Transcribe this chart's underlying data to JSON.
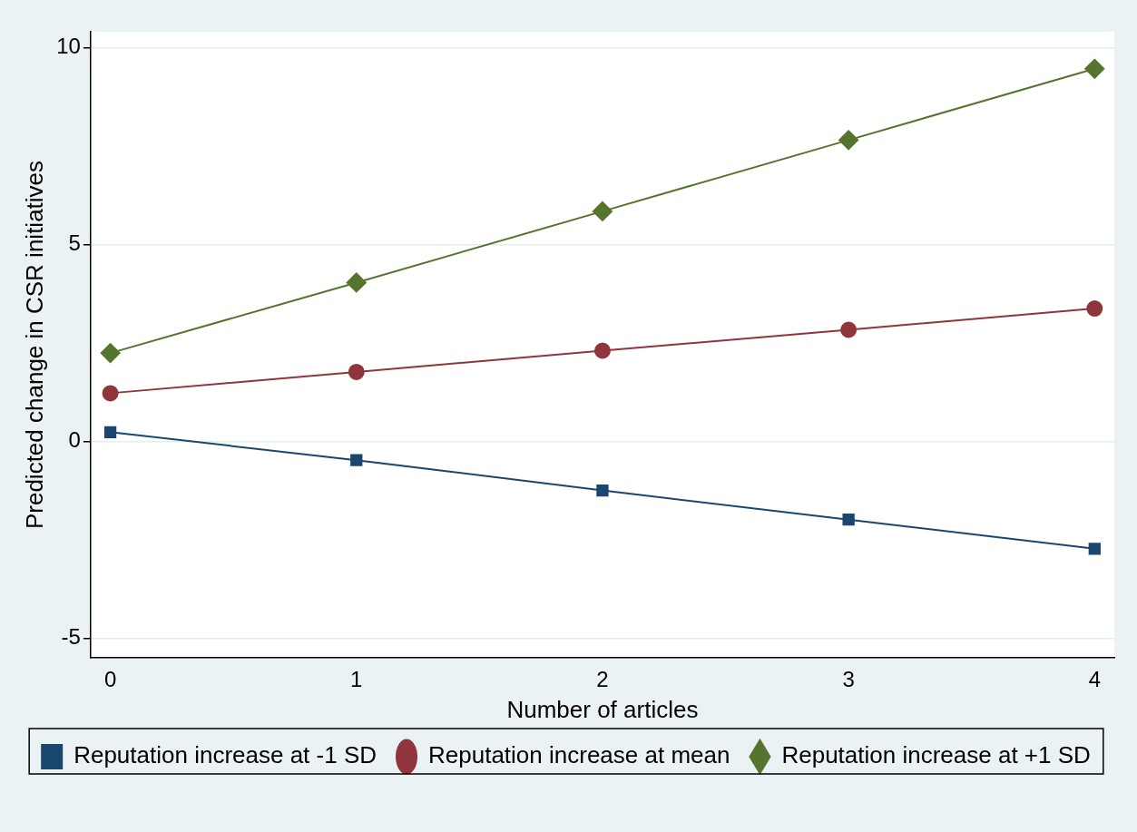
{
  "chart_data": {
    "type": "line",
    "xlabel": "Number of articles",
    "ylabel": "Predicted change in CSR initiatives",
    "x": [
      0,
      1,
      2,
      3,
      4
    ],
    "series": [
      {
        "name": "Reputation increase at -1 SD",
        "color": "#1a476f",
        "marker": "square",
        "values": [
          0.23,
          -0.48,
          -1.25,
          -1.99,
          -2.73
        ]
      },
      {
        "name": "Reputation increase at mean",
        "color": "#90353b",
        "marker": "circle",
        "values": [
          1.22,
          1.76,
          2.3,
          2.83,
          3.37
        ]
      },
      {
        "name": "Reputation increase at +1 SD",
        "color": "#55752f",
        "marker": "diamond",
        "values": [
          2.24,
          4.03,
          5.84,
          7.65,
          9.46
        ]
      }
    ],
    "xlim": [
      -0.08,
      4.08
    ],
    "xticks": [
      0,
      1,
      2,
      3,
      4
    ],
    "ylim": [
      -5.5,
      10.4
    ],
    "yticks": [
      -5,
      0,
      5,
      10
    ],
    "grid": "y",
    "legend": "bottom",
    "line_style": "solid"
  }
}
